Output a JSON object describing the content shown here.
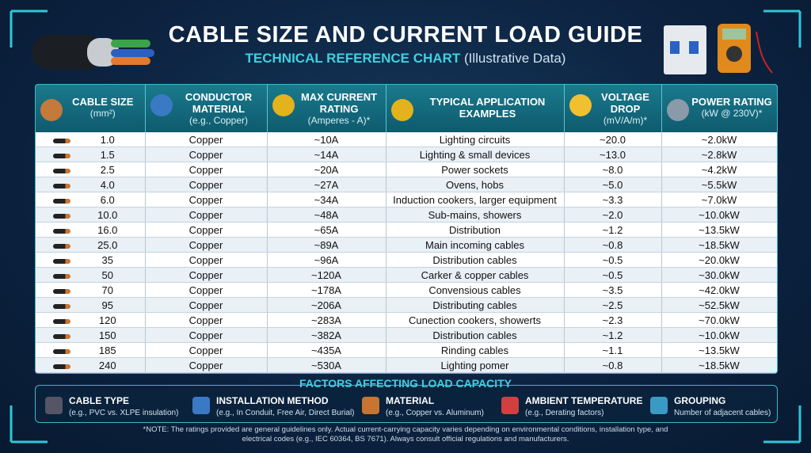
{
  "header": {
    "title": "CABLE SIZE AND CURRENT LOAD GUIDE",
    "subtitle": "TECHNICAL REFERENCE CHART",
    "subtitle_note": "(Illustrative Data)"
  },
  "table": {
    "columns": [
      {
        "title": "CABLE SIZE",
        "unit": "(mm²)"
      },
      {
        "title": "CONDUCTOR MATERIAL",
        "unit": "(e.g., Copper)"
      },
      {
        "title": "MAX CURRENT RATING",
        "unit": "(Amperes - A)*"
      },
      {
        "title": "TYPICAL APPLICATION EXAMPLES",
        "unit": ""
      },
      {
        "title": "VOLTAGE DROP",
        "unit": "(mV/A/m)*"
      },
      {
        "title": "POWER RATING",
        "unit": "(kW @ 230V)*"
      }
    ],
    "rows": [
      [
        "1.0",
        "Copper",
        "~10A",
        "Lighting circuits",
        "~20.0",
        "~2.0kW"
      ],
      [
        "1.5",
        "Copper",
        "~14A",
        "Lighting & small devices",
        "~13.0",
        "~2.8kW"
      ],
      [
        "2.5",
        "Copper",
        "~20A",
        "Power sockets",
        "~8.0",
        "~4.2kW"
      ],
      [
        "4.0",
        "Copper",
        "~27A",
        "Ovens, hobs",
        "~5.0",
        "~5.5kW"
      ],
      [
        "6.0",
        "Copper",
        "~34A",
        "Induction cookers, larger equipment",
        "~3.3",
        "~7.0kW"
      ],
      [
        "10.0",
        "Copper",
        "~48A",
        "Sub-mains, showers",
        "~2.0",
        "~10.0kW"
      ],
      [
        "16.0",
        "Copper",
        "~65A",
        "Distribution",
        "~1.2",
        "~13.5kW"
      ],
      [
        "25.0",
        "Copper",
        "~89A",
        "Main incoming cables",
        "~0.8",
        "~18.5kW"
      ],
      [
        "35",
        "Copper",
        "~96A",
        "Distribution cables",
        "~0.5",
        "~20.0kW"
      ],
      [
        "50",
        "Copper",
        "~120A",
        "Carker & copper cables",
        "~0.5",
        "~30.0kW"
      ],
      [
        "70",
        "Copper",
        "~178A",
        "Convensious cables",
        "~3.5",
        "~42.0kW"
      ],
      [
        "95",
        "Copper",
        "~206A",
        "Distributing cables",
        "~2.5",
        "~52.5kW"
      ],
      [
        "120",
        "Copper",
        "~283A",
        "Cunection cookers, showerts",
        "~2.3",
        "~70.0kW"
      ],
      [
        "150",
        "Copper",
        "~382A",
        "Distribution cables",
        "~1.2",
        "~10.0kW"
      ],
      [
        "185",
        "Copper",
        "~435A",
        "Rinding cables",
        "~1.1",
        "~13.5kW"
      ],
      [
        "240",
        "Copper",
        "~530A",
        "Lighting pomer",
        "~0.8",
        "~18.5kW"
      ]
    ]
  },
  "factors": {
    "title": "FACTORS AFFECTING LOAD CAPACITY",
    "items": [
      {
        "name": "CABLE TYPE",
        "desc": "(e.g., PVC vs. XLPE insulation)"
      },
      {
        "name": "INSTALLATION METHOD",
        "desc": "(e.g., In Conduit, Free Air, Direct Burial)"
      },
      {
        "name": "MATERIAL",
        "desc": "(e.g., Copper vs. Aluminum)"
      },
      {
        "name": "AMBIENT TEMPERATURE",
        "desc": "(e.g., Derating factors)"
      },
      {
        "name": "GROUPING",
        "desc": "Number of adjacent cables)"
      }
    ]
  },
  "note": "*NOTE: The ratings provided are general guidelines only. Actual current-carrying capacity varies depending on environmental conditions, installation type, and electrical codes (e.g., IEC 60364, BS 7671). Always consult official regulations and manufacturers."
}
